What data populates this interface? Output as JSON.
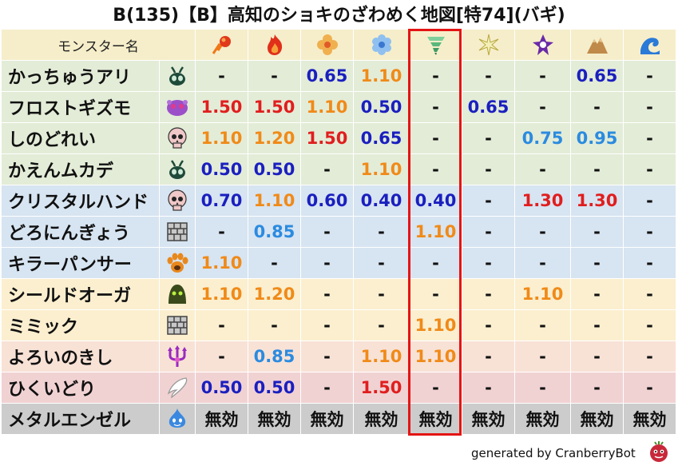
{
  "title": "B(135)【B】高知のショキのざわめく地図[特74](バギ)",
  "header": {
    "name_label": "モンスター名",
    "element_icons": [
      "fire-ball-icon",
      "fire-icon",
      "flower-ice-icon",
      "snowflake-icon",
      "tornado-icon",
      "spark-icon",
      "dark-spiral-icon",
      "mountain-icon",
      "wave-icon"
    ]
  },
  "rows": [
    {
      "name": "かっちゅうアリ",
      "icon": "bug-icon",
      "color": "green",
      "values": [
        {
          "v": "-",
          "c": "black"
        },
        {
          "v": "-",
          "c": "black"
        },
        {
          "v": "0.65",
          "c": "navy"
        },
        {
          "v": "1.10",
          "c": "orange"
        },
        {
          "v": "-",
          "c": "black"
        },
        {
          "v": "-",
          "c": "black"
        },
        {
          "v": "-",
          "c": "black"
        },
        {
          "v": "0.65",
          "c": "navy"
        },
        {
          "v": "-",
          "c": "black"
        }
      ]
    },
    {
      "name": "フロストギズモ",
      "icon": "frost-gizmo-icon",
      "color": "green",
      "values": [
        {
          "v": "1.50",
          "c": "red"
        },
        {
          "v": "1.50",
          "c": "red"
        },
        {
          "v": "1.10",
          "c": "orange"
        },
        {
          "v": "0.50",
          "c": "navy"
        },
        {
          "v": "-",
          "c": "black"
        },
        {
          "v": "0.65",
          "c": "navy"
        },
        {
          "v": "-",
          "c": "black"
        },
        {
          "v": "-",
          "c": "black"
        },
        {
          "v": "-",
          "c": "black"
        }
      ]
    },
    {
      "name": "しのどれい",
      "icon": "skull-icon",
      "color": "green",
      "values": [
        {
          "v": "1.10",
          "c": "orange"
        },
        {
          "v": "1.20",
          "c": "orange"
        },
        {
          "v": "1.50",
          "c": "red"
        },
        {
          "v": "0.65",
          "c": "navy"
        },
        {
          "v": "-",
          "c": "black"
        },
        {
          "v": "-",
          "c": "black"
        },
        {
          "v": "0.75",
          "c": "light"
        },
        {
          "v": "0.95",
          "c": "light"
        },
        {
          "v": "-",
          "c": "black"
        }
      ]
    },
    {
      "name": "かえんムカデ",
      "icon": "bug-icon",
      "color": "green",
      "values": [
        {
          "v": "0.50",
          "c": "navy"
        },
        {
          "v": "0.50",
          "c": "navy"
        },
        {
          "v": "-",
          "c": "black"
        },
        {
          "v": "1.10",
          "c": "orange"
        },
        {
          "v": "-",
          "c": "black"
        },
        {
          "v": "-",
          "c": "black"
        },
        {
          "v": "-",
          "c": "black"
        },
        {
          "v": "-",
          "c": "black"
        },
        {
          "v": "-",
          "c": "black"
        }
      ]
    },
    {
      "name": "クリスタルハンド",
      "icon": "skull-icon",
      "color": "blue",
      "values": [
        {
          "v": "0.70",
          "c": "navy"
        },
        {
          "v": "1.10",
          "c": "orange"
        },
        {
          "v": "0.60",
          "c": "navy"
        },
        {
          "v": "0.40",
          "c": "navy"
        },
        {
          "v": "0.40",
          "c": "navy"
        },
        {
          "v": "-",
          "c": "black"
        },
        {
          "v": "1.30",
          "c": "red"
        },
        {
          "v": "1.30",
          "c": "red"
        },
        {
          "v": "-",
          "c": "black"
        }
      ]
    },
    {
      "name": "どろにんぎょう",
      "icon": "brick-wall-icon",
      "color": "blue",
      "values": [
        {
          "v": "-",
          "c": "black"
        },
        {
          "v": "0.85",
          "c": "light"
        },
        {
          "v": "-",
          "c": "black"
        },
        {
          "v": "-",
          "c": "black"
        },
        {
          "v": "1.10",
          "c": "orange"
        },
        {
          "v": "-",
          "c": "black"
        },
        {
          "v": "-",
          "c": "black"
        },
        {
          "v": "-",
          "c": "black"
        },
        {
          "v": "-",
          "c": "black"
        }
      ]
    },
    {
      "name": "キラーパンサー",
      "icon": "paw-icon",
      "color": "blue",
      "values": [
        {
          "v": "1.10",
          "c": "orange"
        },
        {
          "v": "-",
          "c": "black"
        },
        {
          "v": "-",
          "c": "black"
        },
        {
          "v": "-",
          "c": "black"
        },
        {
          "v": "-",
          "c": "black"
        },
        {
          "v": "-",
          "c": "black"
        },
        {
          "v": "-",
          "c": "black"
        },
        {
          "v": "-",
          "c": "black"
        },
        {
          "v": "-",
          "c": "black"
        }
      ]
    },
    {
      "name": "シールドオーガ",
      "icon": "slime-ghost-icon",
      "color": "yellow",
      "values": [
        {
          "v": "1.10",
          "c": "orange"
        },
        {
          "v": "1.20",
          "c": "orange"
        },
        {
          "v": "-",
          "c": "black"
        },
        {
          "v": "-",
          "c": "black"
        },
        {
          "v": "-",
          "c": "black"
        },
        {
          "v": "-",
          "c": "black"
        },
        {
          "v": "1.10",
          "c": "orange"
        },
        {
          "v": "-",
          "c": "black"
        },
        {
          "v": "-",
          "c": "black"
        }
      ]
    },
    {
      "name": "ミミック",
      "icon": "brick-wall-icon",
      "color": "yellow",
      "values": [
        {
          "v": "-",
          "c": "black"
        },
        {
          "v": "-",
          "c": "black"
        },
        {
          "v": "-",
          "c": "black"
        },
        {
          "v": "-",
          "c": "black"
        },
        {
          "v": "1.10",
          "c": "orange"
        },
        {
          "v": "-",
          "c": "black"
        },
        {
          "v": "-",
          "c": "black"
        },
        {
          "v": "-",
          "c": "black"
        },
        {
          "v": "-",
          "c": "black"
        }
      ]
    },
    {
      "name": "よろいのきし",
      "icon": "trident-icon",
      "color": "peach",
      "values": [
        {
          "v": "-",
          "c": "black"
        },
        {
          "v": "0.85",
          "c": "light"
        },
        {
          "v": "-",
          "c": "black"
        },
        {
          "v": "1.10",
          "c": "orange"
        },
        {
          "v": "1.10",
          "c": "orange"
        },
        {
          "v": "-",
          "c": "black"
        },
        {
          "v": "-",
          "c": "black"
        },
        {
          "v": "-",
          "c": "black"
        },
        {
          "v": "-",
          "c": "black"
        }
      ]
    },
    {
      "name": "ひくいどり",
      "icon": "wing-icon",
      "color": "pink",
      "values": [
        {
          "v": "0.50",
          "c": "navy"
        },
        {
          "v": "0.50",
          "c": "navy"
        },
        {
          "v": "-",
          "c": "black"
        },
        {
          "v": "1.50",
          "c": "red"
        },
        {
          "v": "-",
          "c": "black"
        },
        {
          "v": "-",
          "c": "black"
        },
        {
          "v": "-",
          "c": "black"
        },
        {
          "v": "-",
          "c": "black"
        },
        {
          "v": "-",
          "c": "black"
        }
      ]
    },
    {
      "name": "メタルエンゼル",
      "icon": "slime-icon",
      "color": "gray",
      "values": [
        {
          "v": "無効",
          "c": "black"
        },
        {
          "v": "無効",
          "c": "black"
        },
        {
          "v": "無効",
          "c": "black"
        },
        {
          "v": "無効",
          "c": "black"
        },
        {
          "v": "無効",
          "c": "black"
        },
        {
          "v": "無効",
          "c": "black"
        },
        {
          "v": "無効",
          "c": "black"
        },
        {
          "v": "無効",
          "c": "black"
        },
        {
          "v": "無効",
          "c": "black"
        }
      ]
    }
  ],
  "footer": "generated by CranberryBot",
  "highlight_column": 4
}
